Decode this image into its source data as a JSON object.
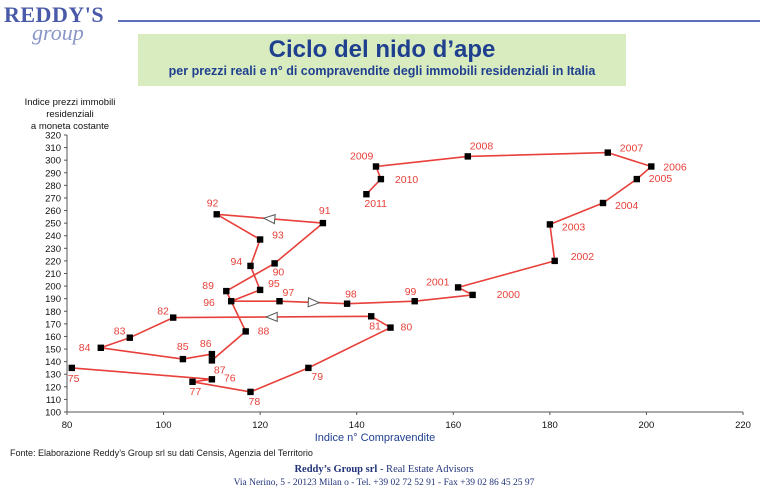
{
  "brand": {
    "main": "REDDY'S",
    "script": "group"
  },
  "header": {
    "title": "Ciclo del nido d’ape",
    "subtitle": "per prezzi reali e n° di compravendite degli immobili residenziali in Italia"
  },
  "chart_data": {
    "type": "line",
    "xlabel": "Indice n° Compravendite",
    "ylabel": [
      "Indice prezzi immobili",
      "residenziali",
      "a moneta costante"
    ],
    "xlim": [
      80,
      220
    ],
    "ylim": [
      100,
      320
    ],
    "xticks": [
      80,
      100,
      120,
      140,
      160,
      180,
      200,
      220
    ],
    "yticks": [
      100,
      110,
      120,
      130,
      140,
      150,
      160,
      170,
      180,
      190,
      200,
      210,
      220,
      230,
      240,
      250,
      260,
      270,
      280,
      290,
      300,
      310,
      320
    ],
    "grid": false,
    "line_color": "#e8403a",
    "marker_color": "#000000",
    "series": [
      {
        "points": [
          {
            "label": "75",
            "x": 81,
            "y": 135
          },
          {
            "label": "76",
            "x": 110,
            "y": 126
          },
          {
            "label": "77",
            "x": 106,
            "y": 124
          },
          {
            "label": "78",
            "x": 118,
            "y": 116
          },
          {
            "label": "79",
            "x": 130,
            "y": 135
          },
          {
            "label": "80",
            "x": 147,
            "y": 167
          },
          {
            "label": "81",
            "x": 143,
            "y": 176
          },
          {
            "label": "82",
            "x": 102,
            "y": 175
          },
          {
            "label": "83",
            "x": 93,
            "y": 159
          },
          {
            "label": "84",
            "x": 87,
            "y": 151
          },
          {
            "label": "85",
            "x": 104,
            "y": 142
          },
          {
            "label": "86",
            "x": 110,
            "y": 146
          },
          {
            "label": "87",
            "x": 110,
            "y": 141
          },
          {
            "label": "88",
            "x": 117,
            "y": 164
          },
          {
            "label": "89",
            "x": 113,
            "y": 196
          },
          {
            "label": "90",
            "x": 123,
            "y": 218
          },
          {
            "label": "91",
            "x": 133,
            "y": 250
          },
          {
            "label": "92",
            "x": 111,
            "y": 257
          },
          {
            "label": "93",
            "x": 120,
            "y": 237
          },
          {
            "label": "94",
            "x": 118,
            "y": 216
          },
          {
            "label": "95",
            "x": 120,
            "y": 197
          },
          {
            "label": "96",
            "x": 114,
            "y": 188
          },
          {
            "label": "97",
            "x": 124,
            "y": 188
          },
          {
            "label": "98",
            "x": 138,
            "y": 186
          },
          {
            "label": "99",
            "x": 152,
            "y": 188
          },
          {
            "label": "2000",
            "x": 164,
            "y": 193
          },
          {
            "label": "2001",
            "x": 161,
            "y": 199
          },
          {
            "label": "2002",
            "x": 181,
            "y": 220
          },
          {
            "label": "2003",
            "x": 180,
            "y": 249
          },
          {
            "label": "2004",
            "x": 191,
            "y": 266
          },
          {
            "label": "2005",
            "x": 198,
            "y": 285
          },
          {
            "label": "2006",
            "x": 201,
            "y": 295
          },
          {
            "label": "2007",
            "x": 192,
            "y": 306
          },
          {
            "label": "2008",
            "x": 163,
            "y": 303
          },
          {
            "label": "2009",
            "x": 144,
            "y": 295
          },
          {
            "label": "2010",
            "x": 145,
            "y": 285
          },
          {
            "label": "2011",
            "x": 142,
            "y": 273
          }
        ]
      }
    ]
  },
  "footnote": "Fonte: Elaborazione Reddy’s Group srl su dati Censis, Agenzia del Territorio",
  "footer": {
    "company": "Reddy’s Group srl",
    "tagline": " - Real Estate Advisors",
    "address": "Via Nerino, 5 - 20123  Milan o - Tel. +39 02 72 52 91 - Fax +39 02 86 45 25 97"
  }
}
